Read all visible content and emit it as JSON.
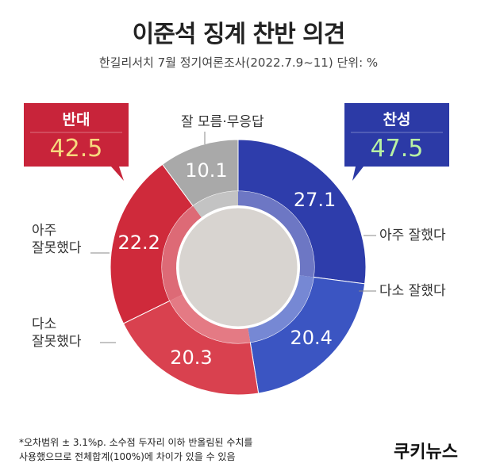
{
  "chart_data": {
    "type": "donut",
    "title": "이준석 징계 찬반 의견",
    "subtitle": "한길리서치 7월 정기여론조사(2022.7.9~11) 단위: %",
    "categories": [
      "아주 잘했다",
      "다소 잘했다",
      "다소\n잘못했다",
      "아주\n잘못했다",
      "잘 모름·무응답"
    ],
    "values": [
      27.1,
      20.4,
      20.3,
      22.2,
      10.1
    ],
    "colors": [
      "#2e3dab",
      "#3b55c2",
      "#d9414f",
      "#cf2a3b",
      "#a9a9a9"
    ],
    "groups": [
      {
        "name": "찬성",
        "value": 47.5,
        "color": "#2c3aa6",
        "value_color": "#b9f2a3"
      },
      {
        "name": "반대",
        "value": 42.5,
        "color": "#c8243a",
        "value_color": "#f7d97e"
      }
    ],
    "footnote": "*오차범위 ± 3.1%p. 소수점 두자리 이하 반올림된 수치를\n 사용했으므로 전체합계(100%)에 차이가 있을 수 있음",
    "logo": "쿠키뉴스"
  }
}
